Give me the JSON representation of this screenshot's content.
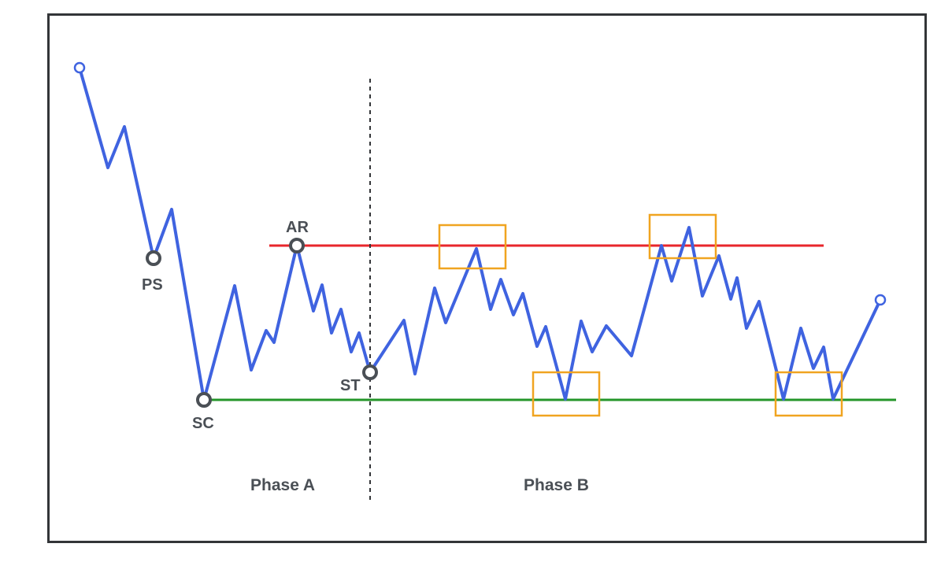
{
  "diagram": {
    "labels": {
      "ps": "PS",
      "sc": "SC",
      "ar": "AR",
      "st": "ST",
      "phase_a": "Phase A",
      "phase_b": "Phase B"
    },
    "colors": {
      "price_line": "#3f63e0",
      "resistance_line": "#e8262b",
      "support_line": "#24962a",
      "highlight_box": "#f0a420",
      "phase_divider": "#333538",
      "event_marker": "#4a4f55",
      "frame": "#333538"
    }
  }
}
